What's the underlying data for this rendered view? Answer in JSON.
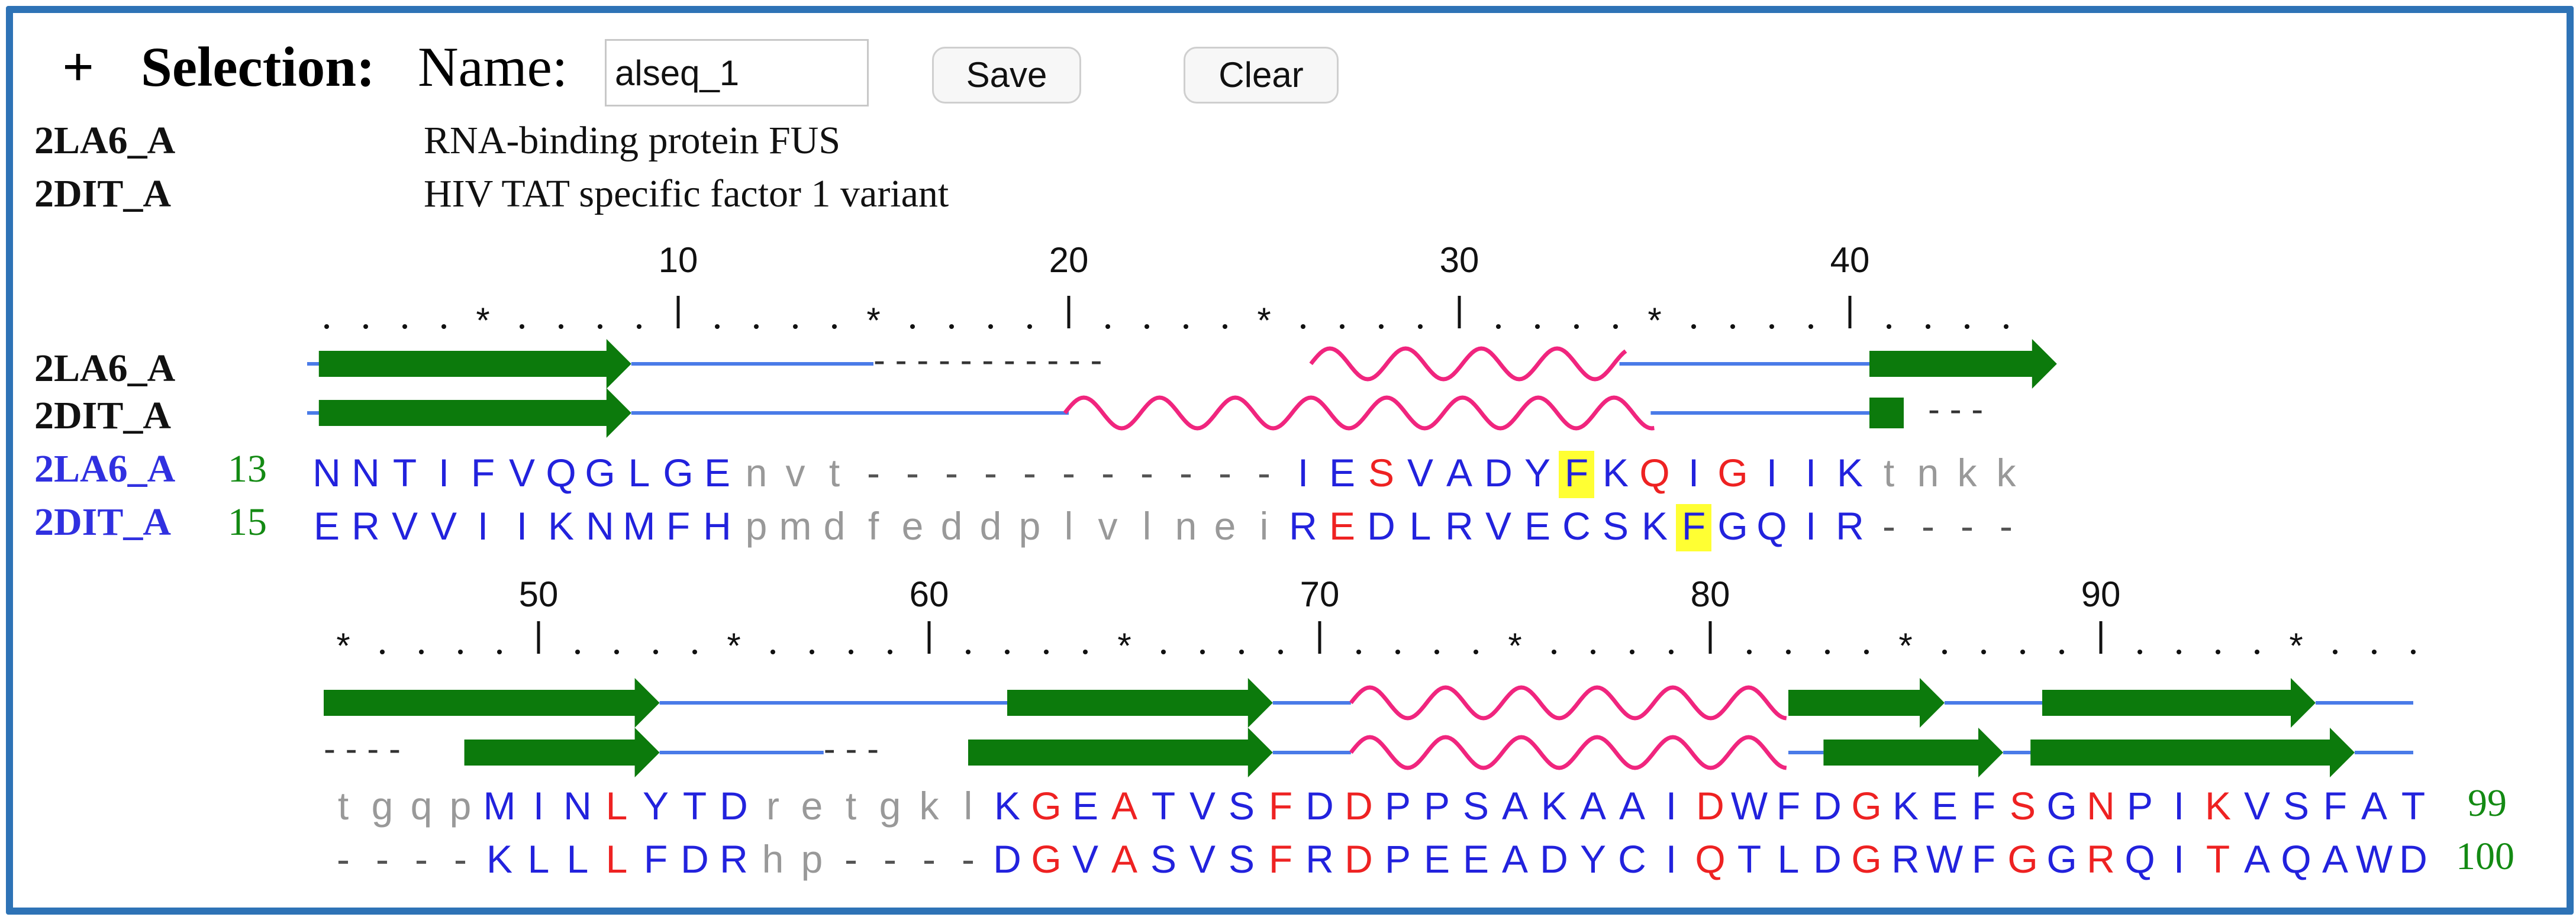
{
  "header": {
    "plus": "+",
    "selection_label": "Selection:",
    "name_label": "Name:",
    "name_value": "alseq_1",
    "save_label": "Save",
    "clear_label": "Clear"
  },
  "entries": [
    {
      "id": "2LA6_A",
      "description": "RNA-binding protein FUS"
    },
    {
      "id": "2DIT_A",
      "description": "HIV TAT specific factor 1 variant"
    }
  ],
  "colors": {
    "frame": "#2e73b6",
    "strand": "#0c7a0c",
    "helix": "#f0257e",
    "coil": "#4a7be8",
    "residue_default": "#2222dd",
    "residue_conserved": "#ee2222",
    "residue_gap": "#999999",
    "highlight": "#ffff33",
    "position_number": "#138a13"
  },
  "blocks": [
    {
      "ruler_numbers": [
        "10",
        "20",
        "30",
        "40"
      ],
      "rows": [
        {
          "name": "2LA6_A",
          "start": "13",
          "end": "",
          "residues": "NNTIFVQGLGEnvt-----------IESVADYFKQIGIIKtnkk",
          "conserved": [
            27,
            34,
            36
          ],
          "highlight": [
            32
          ]
        },
        {
          "name": "2DIT_A",
          "start": "15",
          "end": "",
          "residues": "ERVVIIKNMFHpmdfeddplvlneiREDLRVECSKFGQIR----",
          "conserved": [
            26
          ],
          "highlight": [
            35
          ]
        }
      ]
    },
    {
      "ruler_numbers": [
        "50",
        "60",
        "70",
        "80",
        "90"
      ],
      "rows": [
        {
          "name": "",
          "start": "",
          "end": "99",
          "residues": "tgqpMINLYTDretgklKGEATVSFDDPPSAKAAIDWFDGKEFSGNPIKVSFAT",
          "conserved": [
            7,
            18,
            20,
            24,
            26,
            35,
            39,
            43,
            45,
            48
          ],
          "highlight": []
        },
        {
          "name": "",
          "start": "",
          "end": "100",
          "residues": "----KLLLFDRhp----DGVASVSFRDPEEADYCIQTLDGRWFGGRQITAQAWD",
          "conserved": [
            7,
            18,
            20,
            24,
            26,
            35,
            39,
            43,
            45,
            48
          ],
          "highlight": []
        }
      ]
    }
  ]
}
